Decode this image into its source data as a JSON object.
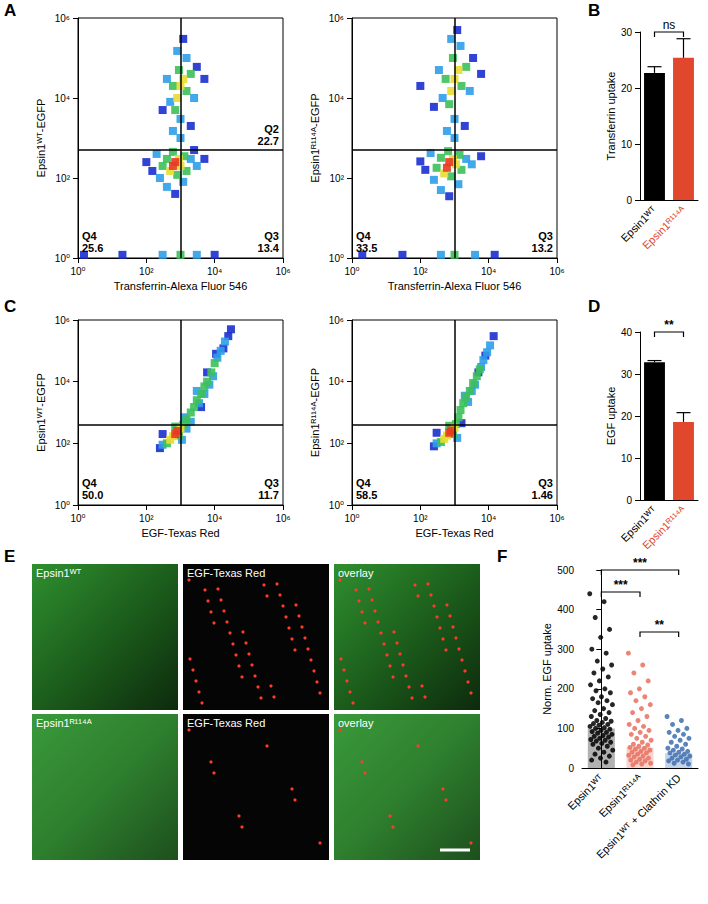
{
  "chart_data": [
    {
      "panel": "A",
      "type": "scatter",
      "log": true,
      "marker": "square",
      "xlabel": "Transferrin-Alexa Fluor 546",
      "ylabel": "Epsin1ᵂᵀ-EGFP",
      "xlim": [
        1,
        1000000
      ],
      "ylim": [
        1,
        1000000
      ],
      "xticks": [
        {
          "value": 1,
          "label": "10⁰"
        },
        {
          "value": 100,
          "label": "10²"
        },
        {
          "value": 10000,
          "label": "10⁴"
        },
        {
          "value": 1000000,
          "label": "10⁶"
        }
      ],
      "yticks": [
        {
          "value": 1,
          "label": "10⁰"
        },
        {
          "value": 100,
          "label": "10²"
        },
        {
          "value": 10000,
          "label": "10⁴"
        },
        {
          "value": 1000000,
          "label": "10⁶"
        }
      ],
      "quadrant_lines": {
        "x": 1000,
        "y": 500
      },
      "quadrants": [
        {
          "name": "Q2",
          "value": 22.7
        },
        {
          "name": "Q4",
          "value": 25.6
        },
        {
          "name": "Q3",
          "value": 13.4
        }
      ],
      "points": [
        [
          700,
          250,
          5
        ],
        [
          600,
          200,
          5
        ],
        [
          900,
          300,
          4
        ],
        [
          500,
          150,
          4
        ],
        [
          1000,
          200,
          4
        ],
        [
          400,
          300,
          3
        ],
        [
          1300,
          350,
          3
        ],
        [
          800,
          120,
          3
        ],
        [
          300,
          200,
          3
        ],
        [
          1500,
          150,
          3
        ],
        [
          600,
          450,
          3
        ],
        [
          2000,
          300,
          2
        ],
        [
          250,
          100,
          2
        ],
        [
          1200,
          80,
          2
        ],
        [
          400,
          60,
          2
        ],
        [
          3000,
          200,
          2
        ],
        [
          200,
          400,
          2
        ],
        [
          150,
          150,
          1
        ],
        [
          100,
          250,
          1
        ],
        [
          5000,
          300,
          1
        ],
        [
          700,
          40,
          1
        ],
        [
          2500,
          500,
          1
        ],
        [
          1000,
          20000,
          4
        ],
        [
          800,
          10000,
          4
        ],
        [
          1200,
          30000,
          4
        ],
        [
          900,
          50000,
          3
        ],
        [
          1500,
          15000,
          3
        ],
        [
          700,
          5000,
          3
        ],
        [
          600,
          20000,
          3
        ],
        [
          2000,
          40000,
          3
        ],
        [
          1000,
          3000,
          2
        ],
        [
          500,
          8000,
          2
        ],
        [
          2500,
          10000,
          2
        ],
        [
          1500,
          100000,
          2
        ],
        [
          800,
          150000,
          2
        ],
        [
          400,
          30000,
          2
        ],
        [
          3000,
          60000,
          1
        ],
        [
          1200,
          300000,
          1
        ],
        [
          2000,
          2000,
          1
        ],
        [
          300,
          5000,
          1
        ],
        [
          600,
          1500,
          2
        ],
        [
          1000,
          1000,
          2
        ],
        [
          5000,
          30000,
          1
        ],
        [
          1.5,
          1.2,
          1
        ],
        [
          20,
          1.2,
          1
        ],
        [
          300,
          1.2,
          2
        ],
        [
          1000,
          1.2,
          3
        ],
        [
          3000,
          1.2,
          2
        ],
        [
          10000,
          1.2,
          1
        ]
      ]
    },
    {
      "type": "scatter",
      "log": true,
      "marker": "square",
      "xlabel": "Transferrin-Alexa Fluor 546",
      "ylabel": "Epsin1ᴿ¹¹⁴ᴬ-EGFP",
      "xlim": [
        1,
        1000000
      ],
      "ylim": [
        1,
        1000000
      ],
      "xticks": [
        {
          "value": 1,
          "label": "10⁰"
        },
        {
          "value": 100,
          "label": "10²"
        },
        {
          "value": 10000,
          "label": "10⁴"
        },
        {
          "value": 1000000,
          "label": "10⁶"
        }
      ],
      "yticks": [
        {
          "value": 1,
          "label": "10⁰"
        },
        {
          "value": 100,
          "label": "10²"
        },
        {
          "value": 10000,
          "label": "10⁴"
        },
        {
          "value": 1000000,
          "label": "10⁶"
        }
      ],
      "quadrant_lines": {
        "x": 1000,
        "y": 500
      },
      "quadrants": [
        {
          "name": "Q4",
          "value": 33.5
        },
        {
          "name": "Q3",
          "value": 13.2
        }
      ],
      "points": [
        [
          700,
          250,
          5
        ],
        [
          600,
          180,
          5
        ],
        [
          900,
          300,
          4
        ],
        [
          500,
          130,
          4
        ],
        [
          1100,
          220,
          4
        ],
        [
          400,
          320,
          3
        ],
        [
          1400,
          380,
          3
        ],
        [
          800,
          110,
          3
        ],
        [
          300,
          180,
          3
        ],
        [
          1600,
          160,
          3
        ],
        [
          650,
          470,
          3
        ],
        [
          2200,
          300,
          2
        ],
        [
          250,
          90,
          2
        ],
        [
          1300,
          70,
          2
        ],
        [
          400,
          50,
          2
        ],
        [
          3200,
          220,
          2
        ],
        [
          200,
          420,
          2
        ],
        [
          140,
          160,
          1
        ],
        [
          100,
          260,
          1
        ],
        [
          6000,
          350,
          1
        ],
        [
          700,
          35,
          1
        ],
        [
          1000,
          30000,
          4
        ],
        [
          800,
          15000,
          4
        ],
        [
          1300,
          50000,
          4
        ],
        [
          900,
          100000,
          3
        ],
        [
          1600,
          20000,
          3
        ],
        [
          700,
          7000,
          3
        ],
        [
          550,
          30000,
          3
        ],
        [
          2200,
          60000,
          3
        ],
        [
          1000,
          3000,
          2
        ],
        [
          450,
          10000,
          2
        ],
        [
          2800,
          15000,
          2
        ],
        [
          1500,
          200000,
          2
        ],
        [
          800,
          300000,
          2
        ],
        [
          350,
          50000,
          2
        ],
        [
          3500,
          100000,
          1
        ],
        [
          1200,
          500000,
          1
        ],
        [
          2000,
          2000,
          1
        ],
        [
          250,
          6000,
          1
        ],
        [
          600,
          1500,
          2
        ],
        [
          1000,
          1000,
          2
        ],
        [
          6000,
          40000,
          1
        ],
        [
          100,
          20000,
          1
        ],
        [
          2,
          1.2,
          1
        ],
        [
          30,
          1.2,
          1
        ],
        [
          400,
          1.2,
          2
        ],
        [
          1000,
          1.2,
          3
        ],
        [
          4000,
          1.2,
          2
        ],
        [
          15000,
          1.2,
          1
        ]
      ]
    },
    {
      "panel": "B",
      "type": "bar",
      "categories": [
        "Epsin1ᵂᵀ",
        "Epsin1ᴿ¹¹⁴ᴬ"
      ],
      "values": [
        22.7,
        25.4
      ],
      "errors": [
        1.1,
        3.4
      ],
      "colors": [
        "#000000",
        "#e0472c"
      ],
      "ylabel": "Transferrin uptake",
      "ylim": [
        0,
        30
      ],
      "yticks": [
        0,
        10,
        20,
        30
      ],
      "significance": [
        {
          "from": 0,
          "to": 1,
          "label": "ns"
        }
      ]
    },
    {
      "panel": "C",
      "type": "scatter",
      "log": true,
      "marker": "square",
      "xlabel": "EGF-Texas Red",
      "ylabel": "Epsin1ᵂᵀ-EGFP",
      "xlim": [
        1,
        1000000
      ],
      "ylim": [
        1,
        1000000
      ],
      "xticks": [
        {
          "value": 1,
          "label": "10⁰"
        },
        {
          "value": 100,
          "label": "10²"
        },
        {
          "value": 10000,
          "label": "10⁴"
        },
        {
          "value": 1000000,
          "label": "10⁶"
        }
      ],
      "yticks": [
        {
          "value": 1,
          "label": "10⁰"
        },
        {
          "value": 100,
          "label": "10²"
        },
        {
          "value": 10000,
          "label": "10⁴"
        },
        {
          "value": 1000000,
          "label": "10⁶"
        }
      ],
      "quadrant_lines": {
        "x": 1000,
        "y": 400
      },
      "quadrants": [
        {
          "name": "Q4",
          "value": 50.0,
          "label": "50.0"
        },
        {
          "name": "Q3",
          "value": 11.7
        }
      ],
      "points": [
        [
          700,
          200,
          5
        ],
        [
          800,
          250,
          5
        ],
        [
          600,
          170,
          4
        ],
        [
          1000,
          300,
          4
        ],
        [
          500,
          130,
          4
        ],
        [
          900,
          180,
          3
        ],
        [
          1200,
          400,
          3
        ],
        [
          400,
          100,
          3
        ],
        [
          700,
          350,
          3
        ],
        [
          1500,
          600,
          3
        ],
        [
          1500,
          300,
          2
        ],
        [
          2000,
          1000,
          3
        ],
        [
          2500,
          1500,
          3
        ],
        [
          3000,
          2500,
          3
        ],
        [
          4000,
          4000,
          3
        ],
        [
          5000,
          7000,
          3
        ],
        [
          6000,
          10000,
          3
        ],
        [
          8000,
          20000,
          3
        ],
        [
          10000,
          40000,
          3
        ],
        [
          12000,
          60000,
          2
        ],
        [
          15000,
          100000,
          2
        ],
        [
          20000,
          200000,
          2
        ],
        [
          25000,
          300000,
          1
        ],
        [
          30000,
          500000,
          1
        ],
        [
          3500,
          2000,
          2
        ],
        [
          5000,
          4000,
          2
        ],
        [
          7000,
          8000,
          2
        ],
        [
          3000,
          5000,
          2
        ],
        [
          9000,
          15000,
          2
        ],
        [
          300,
          90,
          2
        ],
        [
          1100,
          130,
          2
        ],
        [
          300,
          200,
          1
        ],
        [
          2000,
          500,
          2
        ],
        [
          1300,
          700,
          2
        ],
        [
          4000,
          1500,
          1
        ],
        [
          11000,
          80000,
          1
        ],
        [
          18000,
          120000,
          1
        ],
        [
          6000,
          20000,
          1
        ],
        [
          250,
          70,
          1
        ]
      ]
    },
    {
      "type": "scatter",
      "log": true,
      "marker": "square",
      "xlabel": "EGF-Texas Red",
      "ylabel": "Epsin1ᴿ¹¹⁴ᴬ-EGFP",
      "xlim": [
        1,
        1000000
      ],
      "ylim": [
        1,
        1000000
      ],
      "xticks": [
        {
          "value": 1,
          "label": "10⁰"
        },
        {
          "value": 100,
          "label": "10²"
        },
        {
          "value": 10000,
          "label": "10⁴"
        },
        {
          "value": 1000000,
          "label": "10⁶"
        }
      ],
      "yticks": [
        {
          "value": 1,
          "label": "10⁰"
        },
        {
          "value": 100,
          "label": "10²"
        },
        {
          "value": 10000,
          "label": "10⁴"
        },
        {
          "value": 1000000,
          "label": "10⁶"
        }
      ],
      "quadrant_lines": {
        "x": 1000,
        "y": 400
      },
      "quadrants": [
        {
          "name": "Q4",
          "value": 58.5
        },
        {
          "name": "Q3",
          "value": 1.46
        }
      ],
      "points": [
        [
          700,
          220,
          5
        ],
        [
          800,
          260,
          5
        ],
        [
          600,
          180,
          4
        ],
        [
          1000,
          320,
          4
        ],
        [
          500,
          140,
          4
        ],
        [
          900,
          200,
          3
        ],
        [
          1100,
          420,
          3
        ],
        [
          400,
          110,
          3
        ],
        [
          700,
          370,
          3
        ],
        [
          1300,
          700,
          3
        ],
        [
          1500,
          1200,
          3
        ],
        [
          1800,
          2000,
          3
        ],
        [
          2200,
          3000,
          3
        ],
        [
          2800,
          5000,
          3
        ],
        [
          3500,
          9000,
          3
        ],
        [
          4500,
          15000,
          3
        ],
        [
          5500,
          25000,
          3
        ],
        [
          7000,
          50000,
          2
        ],
        [
          9000,
          90000,
          2
        ],
        [
          11000,
          150000,
          2
        ],
        [
          14000,
          300000,
          1
        ],
        [
          2500,
          2200,
          2
        ],
        [
          3200,
          5000,
          2
        ],
        [
          4000,
          8000,
          2
        ],
        [
          2000,
          3500,
          2
        ],
        [
          6000,
          30000,
          2
        ],
        [
          300,
          100,
          2
        ],
        [
          1200,
          150,
          2
        ],
        [
          300,
          220,
          1
        ],
        [
          1600,
          450,
          1
        ],
        [
          5000,
          20000,
          1
        ],
        [
          8000,
          70000,
          1
        ],
        [
          250,
          80,
          1
        ]
      ]
    },
    {
      "panel": "D",
      "type": "bar",
      "categories": [
        "Epsin1ᵂᵀ",
        "Epsin1ᴿ¹¹⁴ᴬ"
      ],
      "values": [
        32.8,
        18.6
      ],
      "errors": [
        0.4,
        2.2
      ],
      "colors": [
        "#000000",
        "#e0472c"
      ],
      "ylabel": "EGF uptake",
      "ylim": [
        0,
        40
      ],
      "yticks": [
        0,
        10,
        20,
        30,
        40
      ],
      "significance": [
        {
          "from": 0,
          "to": 1,
          "label": "**"
        }
      ]
    },
    {
      "panel": "F",
      "type": "bar",
      "categories": [
        "Epsin1ᵂᵀ",
        "Epsin1ᴿ¹¹⁴ᴬ",
        "Epsin1ᵂᵀ + Clathrin KD"
      ],
      "values": [
        100,
        52,
        37
      ],
      "colors": [
        "#000000",
        "#e8705f",
        "#3f6fb0"
      ],
      "ylabel": "Norm. EGF uptake",
      "ylim": [
        0,
        500
      ],
      "yticks": [
        0,
        100,
        200,
        300,
        400,
        500
      ],
      "points": [
        [
          440,
          420,
          380,
          350,
          330,
          300,
          290,
          270,
          260,
          250,
          240,
          230,
          220,
          210,
          200,
          195,
          190,
          180,
          175,
          170,
          165,
          160,
          150,
          145,
          140,
          135,
          130,
          125,
          120,
          118,
          115,
          112,
          110,
          108,
          105,
          102,
          100,
          98,
          95,
          92,
          90,
          88,
          85,
          82,
          80,
          78,
          75,
          72,
          70,
          68,
          65,
          62,
          60,
          55,
          50,
          45,
          40,
          35,
          30,
          25,
          20,
          15
        ],
        [
          290,
          260,
          240,
          220,
          200,
          190,
          180,
          170,
          160,
          150,
          140,
          130,
          120,
          110,
          105,
          100,
          95,
          90,
          85,
          80,
          75,
          70,
          65,
          60,
          58,
          55,
          52,
          50,
          48,
          45,
          42,
          40,
          38,
          35,
          32,
          30,
          28,
          25,
          22,
          20,
          18,
          15,
          12,
          10,
          8
        ],
        [
          130,
          120,
          110,
          100,
          95,
          90,
          85,
          80,
          75,
          70,
          65,
          60,
          55,
          50,
          48,
          45,
          42,
          40,
          38,
          35,
          33,
          30,
          28,
          25,
          22,
          20,
          18,
          15,
          12,
          10
        ]
      ],
      "significance": [
        {
          "from": 0,
          "to": 1,
          "label": "***"
        },
        {
          "from": 0,
          "to": 2,
          "label": "***"
        },
        {
          "from": 1,
          "to": 2,
          "label": "**"
        }
      ]
    }
  ],
  "images": {
    "panel": "E",
    "rows": [
      [
        "Epsin1ᵂᵀ",
        "EGF-Texas Red",
        "overlay"
      ],
      [
        "Epsin1ᴿ¹¹⁴ᴬ",
        "EGF-Texas Red",
        "overlay"
      ]
    ]
  }
}
